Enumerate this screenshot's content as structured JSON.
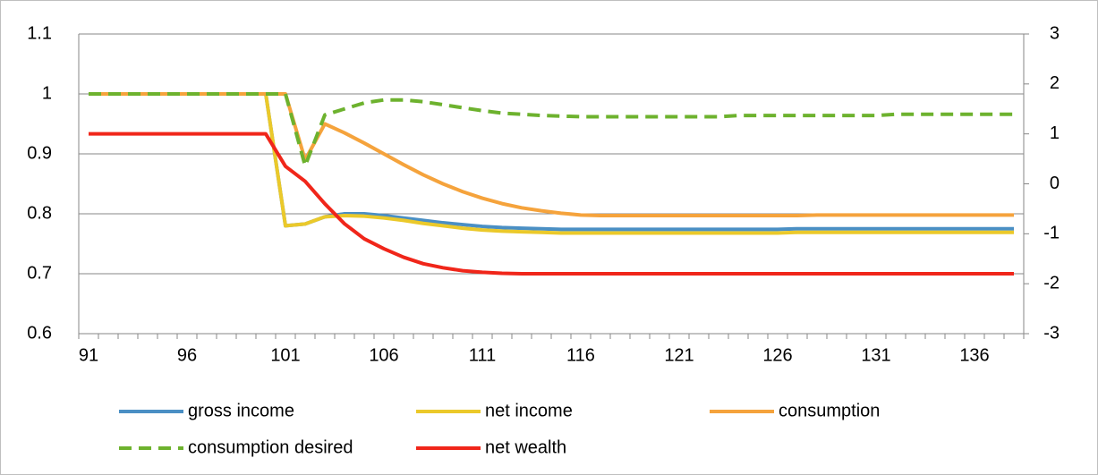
{
  "chart_data": {
    "type": "line",
    "categories": [
      "91",
      null,
      null,
      null,
      null,
      "96",
      null,
      null,
      null,
      null,
      "101",
      null,
      null,
      null,
      null,
      "106",
      null,
      null,
      null,
      null,
      "111",
      null,
      null,
      null,
      null,
      "116",
      null,
      null,
      null,
      null,
      "121",
      null,
      null,
      null,
      null,
      "126",
      null,
      null,
      null,
      null,
      "131",
      null,
      null,
      null,
      null,
      "136",
      null,
      null
    ],
    "ylim": [
      0.6,
      1.1
    ],
    "yticks": [
      0.6,
      0.7,
      0.8,
      0.9,
      1,
      1.1
    ],
    "y2lim": [
      -3,
      3
    ],
    "y2ticks": [
      -3,
      -2,
      -1,
      0,
      1,
      2,
      3
    ],
    "grid": true,
    "series": [
      {
        "name": "gross income",
        "color": "#4a8fc4",
        "values": [
          1,
          1,
          1,
          1,
          1,
          1,
          1,
          1,
          1,
          1,
          0.78,
          0.783,
          0.795,
          0.8,
          0.8,
          0.797,
          0.793,
          0.789,
          0.785,
          0.782,
          0.779,
          0.777,
          0.776,
          0.775,
          0.774,
          0.774,
          0.774,
          0.774,
          0.774,
          0.774,
          0.774,
          0.774,
          0.774,
          0.774,
          0.774,
          0.774,
          0.775,
          0.775,
          0.775,
          0.775,
          0.775,
          0.775,
          0.775,
          0.775,
          0.775,
          0.775,
          0.775,
          0.775
        ]
      },
      {
        "name": "net income",
        "color": "#ebc92a",
        "values": [
          1,
          1,
          1,
          1,
          1,
          1,
          1,
          1,
          1,
          1,
          0.78,
          0.783,
          0.795,
          0.797,
          0.796,
          0.793,
          0.789,
          0.784,
          0.78,
          0.776,
          0.773,
          0.771,
          0.77,
          0.769,
          0.768,
          0.768,
          0.768,
          0.768,
          0.768,
          0.768,
          0.768,
          0.768,
          0.768,
          0.768,
          0.768,
          0.768,
          0.769,
          0.769,
          0.769,
          0.769,
          0.769,
          0.769,
          0.769,
          0.769,
          0.769,
          0.769,
          0.769,
          0.769
        ]
      },
      {
        "name": "consumption",
        "color": "#f5a33c",
        "values": [
          1,
          1,
          1,
          1,
          1,
          1,
          1,
          1,
          1,
          1,
          1,
          0.89,
          0.95,
          0.935,
          0.918,
          0.9,
          0.882,
          0.865,
          0.85,
          0.837,
          0.826,
          0.817,
          0.81,
          0.805,
          0.801,
          0.798,
          0.797,
          0.797,
          0.797,
          0.797,
          0.797,
          0.797,
          0.797,
          0.797,
          0.797,
          0.797,
          0.797,
          0.798,
          0.798,
          0.798,
          0.798,
          0.798,
          0.798,
          0.798,
          0.798,
          0.798,
          0.798,
          0.798
        ]
      },
      {
        "name": "consumption desired",
        "color": "#6db22e",
        "dashed": true,
        "values": [
          1,
          1,
          1,
          1,
          1,
          1,
          1,
          1,
          1,
          1,
          1,
          0.88,
          0.965,
          0.975,
          0.985,
          0.99,
          0.99,
          0.987,
          0.982,
          0.977,
          0.972,
          0.968,
          0.966,
          0.964,
          0.963,
          0.962,
          0.962,
          0.962,
          0.962,
          0.962,
          0.962,
          0.962,
          0.962,
          0.964,
          0.964,
          0.964,
          0.964,
          0.964,
          0.964,
          0.964,
          0.964,
          0.966,
          0.966,
          0.966,
          0.966,
          0.966,
          0.966,
          0.966
        ]
      },
      {
        "name": "net wealth",
        "color": "#f0261a",
        "axis": "y2",
        "values": [
          1,
          1,
          1,
          1,
          1,
          1,
          1,
          1,
          1,
          1,
          0.35,
          0.05,
          -0.4,
          -0.8,
          -1.1,
          -1.3,
          -1.47,
          -1.6,
          -1.68,
          -1.74,
          -1.77,
          -1.79,
          -1.8,
          -1.8,
          -1.8,
          -1.8,
          -1.8,
          -1.8,
          -1.8,
          -1.8,
          -1.8,
          -1.8,
          -1.8,
          -1.8,
          -1.8,
          -1.8,
          -1.8,
          -1.8,
          -1.8,
          -1.8,
          -1.8,
          -1.8,
          -1.8,
          -1.8,
          -1.8,
          -1.8,
          -1.8,
          -1.8
        ]
      }
    ]
  }
}
